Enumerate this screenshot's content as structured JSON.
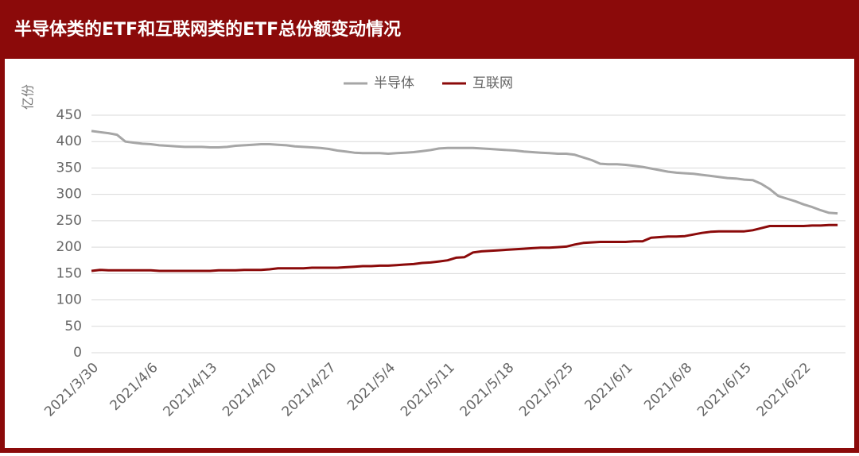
{
  "chart_data": {
    "type": "line",
    "title": "半导体类的ETF和互联网类的ETF总份额变动情况",
    "y_label": "亿份",
    "categories": [
      "2021/3/30",
      null,
      null,
      null,
      null,
      null,
      null,
      "2021/4/6",
      null,
      null,
      null,
      null,
      null,
      null,
      "2021/4/13",
      null,
      null,
      null,
      null,
      null,
      null,
      "2021/4/20",
      null,
      null,
      null,
      null,
      null,
      null,
      "2021/4/27",
      null,
      null,
      null,
      null,
      null,
      null,
      "2021/5/4",
      null,
      null,
      null,
      null,
      null,
      null,
      "2021/5/11",
      null,
      null,
      null,
      null,
      null,
      null,
      "2021/5/18",
      null,
      null,
      null,
      null,
      null,
      null,
      "2021/5/25",
      null,
      null,
      null,
      null,
      null,
      null,
      "2021/6/1",
      null,
      null,
      null,
      null,
      null,
      null,
      "2021/6/8",
      null,
      null,
      null,
      null,
      null,
      null,
      "2021/6/15",
      null,
      null,
      null,
      null,
      null,
      null,
      "2021/6/22",
      null,
      null,
      null,
      null
    ],
    "series": [
      {
        "name": "半导体",
        "color": "#a6a6a6",
        "values": [
          420,
          418,
          416,
          413,
          400,
          398,
          396,
          395,
          393,
          392,
          391,
          390,
          390,
          390,
          389,
          389,
          390,
          392,
          393,
          394,
          395,
          395,
          394,
          393,
          391,
          390,
          389,
          388,
          386,
          383,
          381,
          379,
          378,
          378,
          378,
          377,
          378,
          379,
          380,
          382,
          384,
          387,
          388,
          388,
          388,
          388,
          387,
          386,
          385,
          384,
          383,
          381,
          380,
          379,
          378,
          377,
          377,
          375,
          370,
          365,
          358,
          357,
          357,
          356,
          354,
          352,
          349,
          346,
          343,
          341,
          340,
          339,
          337,
          335,
          333,
          331,
          330,
          328,
          327,
          320,
          310,
          297,
          292,
          287,
          281,
          276,
          270,
          265,
          264
        ]
      },
      {
        "name": "互联网",
        "color": "#8b0a0a",
        "values": [
          155,
          157,
          156,
          156,
          156,
          156,
          156,
          156,
          155,
          155,
          155,
          155,
          155,
          155,
          155,
          156,
          156,
          156,
          157,
          157,
          157,
          158,
          160,
          160,
          160,
          160,
          161,
          161,
          161,
          161,
          162,
          163,
          164,
          164,
          165,
          165,
          166,
          167,
          168,
          170,
          171,
          173,
          175,
          180,
          181,
          190,
          192,
          193,
          194,
          195,
          196,
          197,
          198,
          199,
          199,
          200,
          201,
          205,
          208,
          209,
          210,
          210,
          210,
          210,
          211,
          211,
          218,
          219,
          220,
          220,
          221,
          224,
          227,
          229,
          230,
          230,
          230,
          230,
          232,
          236,
          240,
          240,
          240,
          240,
          240,
          241,
          241,
          242,
          242
        ]
      }
    ],
    "ylim": [
      0,
      450
    ],
    "yticks": [
      0,
      50,
      100,
      150,
      200,
      250,
      300,
      350,
      400,
      450
    ],
    "grid": true,
    "legend": "top"
  }
}
